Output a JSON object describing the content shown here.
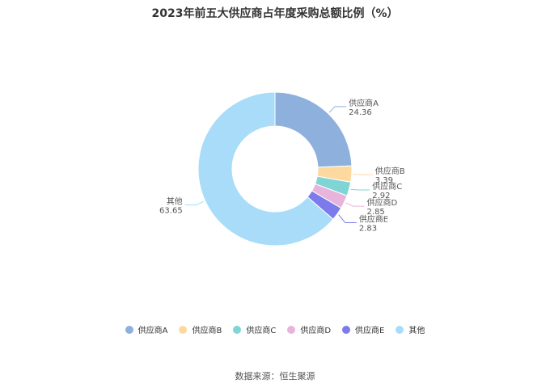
{
  "chart_data": {
    "type": "pie",
    "title": "2023年前五大供应商占年度采购总额比例（%）",
    "categories": [
      "供应商A",
      "供应商B",
      "供应商C",
      "供应商D",
      "供应商E",
      "其他"
    ],
    "values": [
      24.36,
      3.39,
      2.92,
      2.85,
      2.83,
      63.65
    ],
    "value_labels": [
      "24.36",
      "3.39",
      "2.92",
      "2.85",
      "2.83",
      "63.65"
    ],
    "colors": [
      "#8eb0dd",
      "#fdd9a0",
      "#7fd5d5",
      "#e8b4dc",
      "#7b7beb",
      "#a8dcf8"
    ],
    "legend_placement": "bottom"
  },
  "source": "数据来源：恒生聚源"
}
